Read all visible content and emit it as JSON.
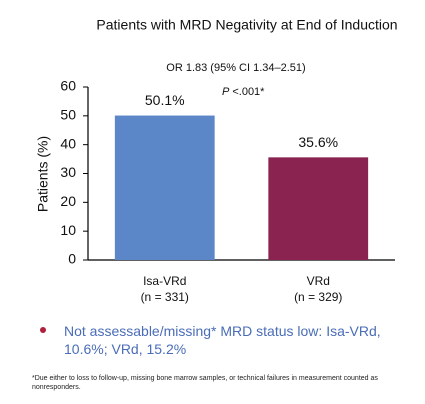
{
  "chart_data": {
    "type": "bar",
    "title": "Patients with MRD Negativity at End of Induction",
    "annotation": "OR 1.83 (95% CI 1.34–2.51)",
    "p_value_symbol": "P",
    "p_value": "<.001*",
    "y_label": "Patients (%)",
    "categories": [
      "Isa-VRd",
      "VRd"
    ],
    "category_notes": [
      "(n = 331)",
      "(n = 329)"
    ],
    "values": [
      50.1,
      35.6
    ],
    "value_labels": [
      "50.1%",
      "35.6%"
    ],
    "colors": [
      "#5b87c8",
      "#8a2350"
    ],
    "ylim": [
      0,
      60
    ],
    "yticks": [
      0,
      10,
      20,
      30,
      40,
      50,
      60
    ],
    "grid": false
  },
  "bullet": "Not assessable/missing* MRD status low: Isa-VRd, 10.6%; VRd, 15.2%",
  "footnote": "*Due either to loss to follow-up, missing bone marrow samples, or technical failures in measurement counted as nonresponders."
}
